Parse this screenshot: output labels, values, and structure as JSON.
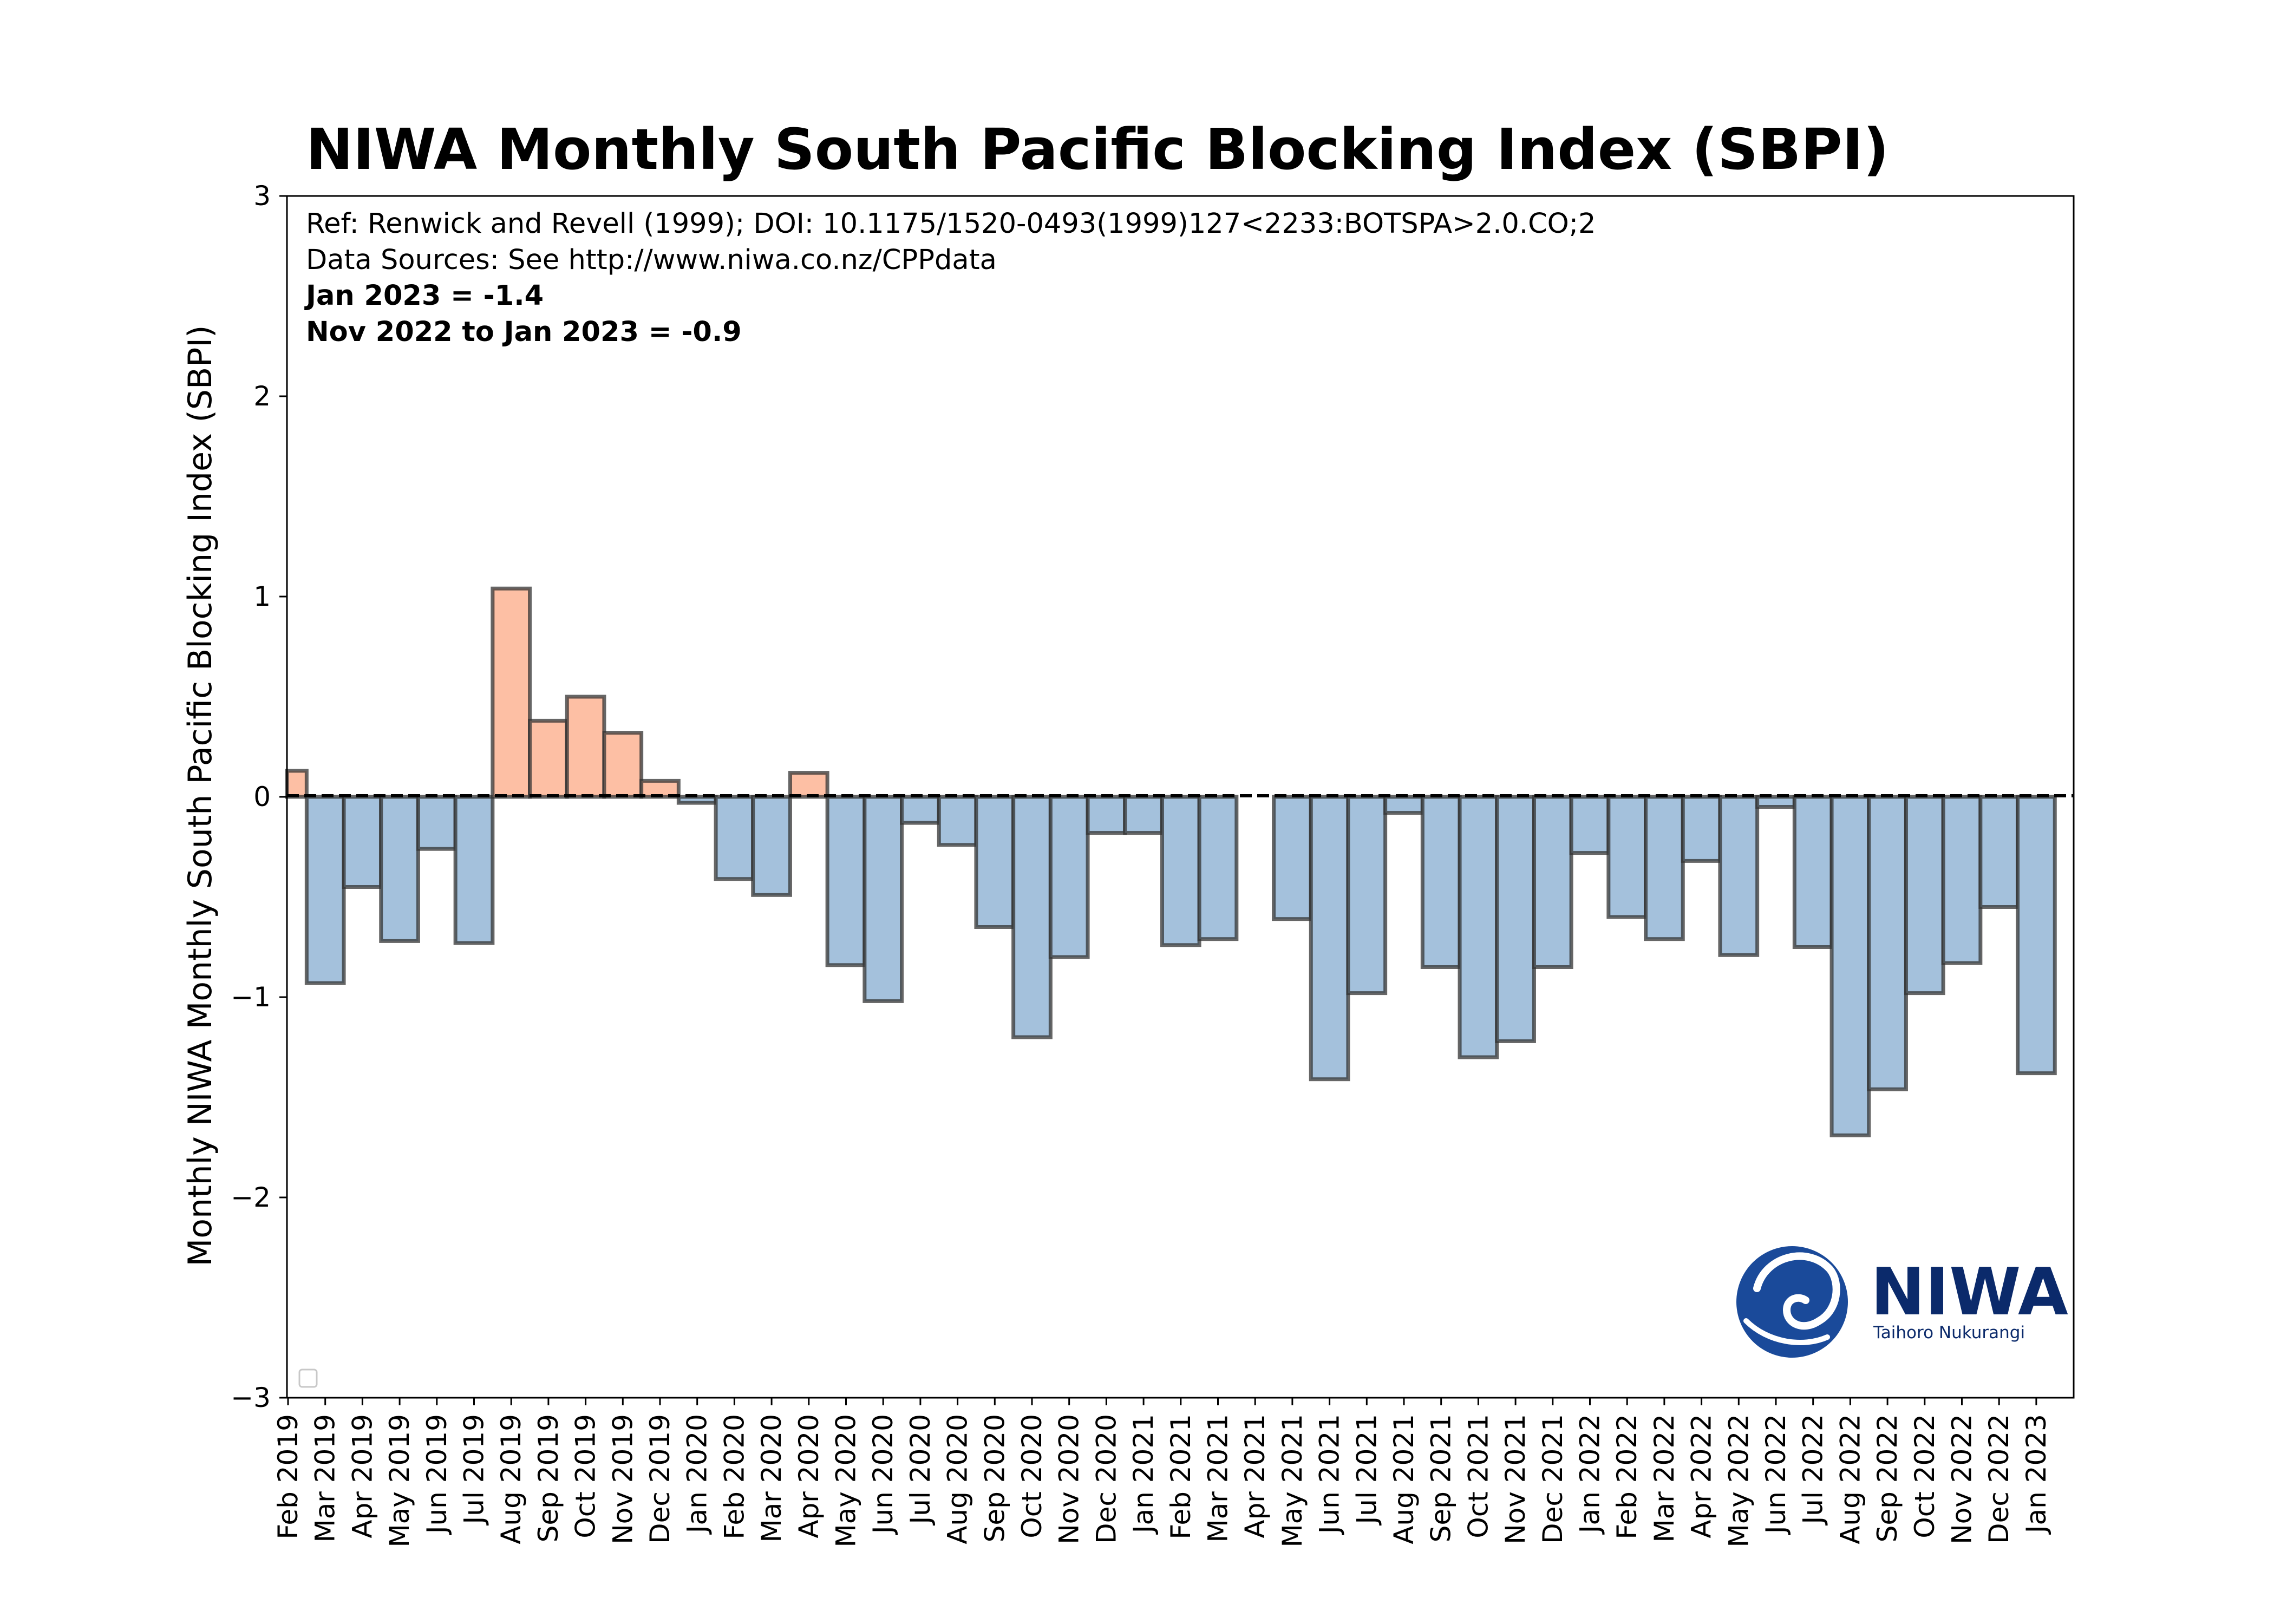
{
  "chart_data": {
    "type": "bar",
    "title": "NIWA Monthly South Pacific Blocking Index (SBPI)",
    "ylabel": "Monthly NIWA Monthly South Pacific Blocking Index (SBPI)",
    "xlabel": "",
    "ylim": [
      -3,
      3
    ],
    "yticks": [
      3,
      2,
      1,
      0,
      -1,
      -2,
      -3
    ],
    "ytick_labels": [
      "3",
      "2",
      "1",
      "0",
      "−1",
      "−2",
      "−3"
    ],
    "grid": false,
    "zero_line": "dashed",
    "legend": "empty box at bottom-left",
    "categories": [
      "Feb 2019",
      "Mar 2019",
      "Apr 2019",
      "May 2019",
      "Jun 2019",
      "Jul 2019",
      "Aug 2019",
      "Sep 2019",
      "Oct 2019",
      "Nov 2019",
      "Dec 2019",
      "Jan 2020",
      "Feb 2020",
      "Mar 2020",
      "Apr 2020",
      "May 2020",
      "Jun 2020",
      "Jul 2020",
      "Aug 2020",
      "Sep 2020",
      "Oct 2020",
      "Nov 2020",
      "Dec 2020",
      "Jan 2021",
      "Feb 2021",
      "Mar 2021",
      "Apr 2021",
      "May 2021",
      "Jun 2021",
      "Jul 2021",
      "Aug 2021",
      "Sep 2021",
      "Oct 2021",
      "Nov 2021",
      "Dec 2021",
      "Jan 2022",
      "Feb 2022",
      "Mar 2022",
      "Apr 2022",
      "May 2022",
      "Jun 2022",
      "Jul 2022",
      "Aug 2022",
      "Sep 2022",
      "Oct 2022",
      "Nov 2022",
      "Dec 2022",
      "Jan 2023"
    ],
    "values": [
      0.13,
      -0.93,
      -0.45,
      -0.72,
      -0.26,
      -0.73,
      1.04,
      0.38,
      0.5,
      0.32,
      0.08,
      -0.03,
      -0.41,
      -0.49,
      0.12,
      -0.84,
      -1.02,
      -0.13,
      -0.24,
      -0.65,
      -1.2,
      -0.8,
      -0.18,
      -0.18,
      -0.74,
      -0.71,
      0.0,
      -0.61,
      -1.41,
      -0.98,
      -0.08,
      -0.85,
      -1.3,
      -1.22,
      -0.85,
      -0.28,
      -0.6,
      -0.71,
      -0.32,
      -0.79,
      -0.05,
      -0.75,
      -1.69,
      -1.46,
      -0.98,
      -0.83,
      -0.55,
      -1.38
    ],
    "colors": {
      "positive": "#fdbfa4",
      "negative": "#a4c1dc",
      "bar_edge": "#333333",
      "axis": "#000000"
    },
    "annotations": [
      "Ref: Renwick and Revell (1999); DOI: 10.1175/1520-0493(1999)127<2233:BOTSPA>2.0.CO;2",
      "Data Sources: See http://www.niwa.co.nz/CPPdata",
      "Jan 2023 = -1.4",
      "Nov 2022 to Jan 2023 = -0.9"
    ]
  },
  "logo": {
    "text": "NIWA",
    "subtext": "Taihoro Nukurangi",
    "color": "#0b2a6b"
  }
}
